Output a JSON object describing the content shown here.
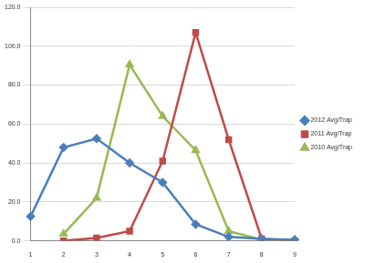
{
  "chart_data": {
    "type": "line",
    "categories": [
      "1",
      "2",
      "3",
      "4",
      "5",
      "6",
      "7",
      "8",
      "9"
    ],
    "series": [
      {
        "name": "2012 Avg/Trap",
        "color": "#4a7ebb",
        "marker": "diamond",
        "values": [
          12.5,
          48,
          52.5,
          40,
          30,
          8.5,
          2,
          1,
          0.5
        ]
      },
      {
        "name": "2011 Avg/Trap",
        "color": "#be4b48",
        "marker": "square",
        "values": [
          null,
          0,
          1.5,
          5,
          41,
          107,
          52,
          1,
          0
        ]
      },
      {
        "name": "2010 Avg/Trap",
        "color": "#98b954",
        "marker": "triangle",
        "values": [
          null,
          3.5,
          22,
          90.5,
          64,
          46.5,
          5,
          0.5,
          0.5
        ]
      }
    ],
    "ylim": [
      0,
      120
    ],
    "yticks": [
      {
        "value": 0,
        "label": "0.0"
      },
      {
        "value": 20,
        "label": "20.0"
      },
      {
        "value": 40,
        "label": "40.0"
      },
      {
        "value": 60,
        "label": "60.0"
      },
      {
        "value": 80,
        "label": "80.0"
      },
      {
        "value": 100,
        "label": "100.0"
      },
      {
        "value": 120,
        "label": "120.0"
      }
    ],
    "grid": true,
    "legend": "right"
  }
}
